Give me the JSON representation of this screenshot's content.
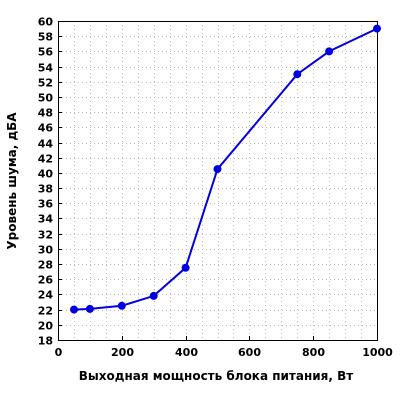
{
  "chart_data": {
    "type": "line",
    "title": "",
    "xlabel": "Выходная мощность блока питания, Вт",
    "ylabel": "Уровень шума, дБА",
    "xlim": [
      0,
      1000
    ],
    "ylim": [
      18,
      60
    ],
    "xticks": [
      0,
      200,
      400,
      600,
      800,
      1000
    ],
    "yticks": [
      18,
      20,
      22,
      24,
      26,
      28,
      30,
      32,
      34,
      36,
      38,
      40,
      42,
      44,
      46,
      48,
      50,
      52,
      54,
      56,
      58,
      60
    ],
    "xgrid_step": 50,
    "ygrid_step": 2,
    "grid": true,
    "series": [
      {
        "color": "#0000e0",
        "x": [
          50,
          100,
          200,
          300,
          400,
          500,
          750,
          850,
          1000
        ],
        "y": [
          22.0,
          22.1,
          22.5,
          23.8,
          27.5,
          40.5,
          53.0,
          56.0,
          59.0
        ]
      }
    ]
  }
}
